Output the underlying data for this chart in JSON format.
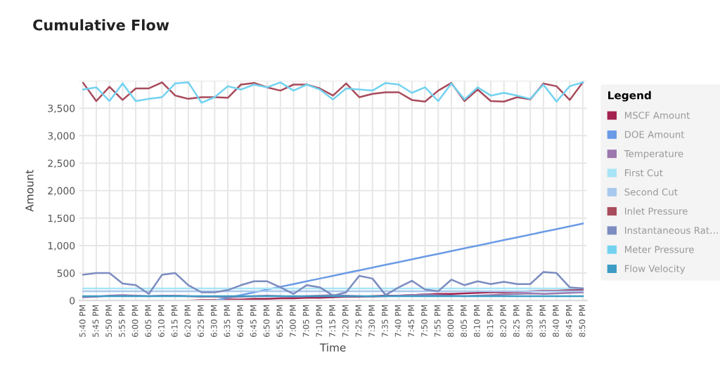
{
  "chart_data": {
    "type": "line",
    "title": "Cumulative Flow",
    "xlabel": "Time",
    "ylabel": "Amount",
    "legend_title": "Legend",
    "categories": [
      "5:40 PM",
      "5:45 PM",
      "5:50 PM",
      "5:55 PM",
      "6:00 PM",
      "6:05 PM",
      "6:10 PM",
      "6:15 PM",
      "6:20 PM",
      "6:25 PM",
      "6:30 PM",
      "6:35 PM",
      "6:40 PM",
      "6:45 PM",
      "6:50 PM",
      "6:55 PM",
      "7:00 PM",
      "7:05 PM",
      "7:10 PM",
      "7:15 PM",
      "7:20 PM",
      "7:25 PM",
      "7:30 PM",
      "7:35 PM",
      "7:40 PM",
      "7:45 PM",
      "7:50 PM",
      "7:55 PM",
      "8:00 PM",
      "8:05 PM",
      "8:10 PM",
      "8:15 PM",
      "8:20 PM",
      "8:25 PM",
      "8:30 PM",
      "8:35 PM",
      "8:40 PM",
      "8:45 PM",
      "8:50 PM"
    ],
    "series": [
      {
        "name": "MSCF Amount",
        "color": "#a3224f",
        "values": [
          null,
          null,
          null,
          null,
          null,
          null,
          null,
          null,
          0,
          10,
          10,
          20,
          20,
          30,
          30,
          40,
          40,
          50,
          50,
          60,
          70,
          70,
          80,
          90,
          90,
          100,
          110,
          120,
          120,
          130,
          140,
          150,
          150,
          160,
          170,
          180,
          180,
          190,
          200
        ]
      },
      {
        "name": "DOE Amount",
        "color": "#6b9be6",
        "values": [
          null,
          null,
          null,
          null,
          null,
          null,
          null,
          null,
          null,
          null,
          0,
          50,
          100,
          150,
          200,
          250,
          300,
          350,
          400,
          450,
          500,
          550,
          600,
          650,
          700,
          750,
          800,
          850,
          900,
          950,
          1000,
          1050,
          1100,
          1150,
          1200,
          1250,
          1300,
          1350,
          1400
        ]
      },
      {
        "name": "Temperature",
        "color": "#9b78ad",
        "values": [
          60,
          70,
          90,
          100,
          90,
          80,
          90,
          90,
          80,
          70,
          70,
          60,
          70,
          80,
          90,
          80,
          70,
          80,
          90,
          100,
          90,
          80,
          70,
          80,
          90,
          100,
          110,
          100,
          90,
          80,
          90,
          100,
          110,
          120,
          130,
          120,
          130,
          140,
          150
        ]
      },
      {
        "name": "First Cut",
        "color": "#a8e4f5",
        "values": [
          220,
          220,
          220,
          220,
          220,
          220,
          220,
          220,
          220,
          220,
          220,
          220,
          220,
          220,
          220,
          220,
          220,
          220,
          220,
          220,
          220,
          220,
          220,
          220,
          220,
          220,
          220,
          220,
          220,
          220,
          220,
          220,
          220,
          220,
          220,
          220,
          220,
          220,
          220
        ]
      },
      {
        "name": "Second Cut",
        "color": "#a8c8ee",
        "values": [
          170,
          170,
          170,
          170,
          170,
          170,
          170,
          170,
          170,
          170,
          170,
          170,
          170,
          170,
          170,
          170,
          170,
          170,
          170,
          170,
          170,
          170,
          170,
          170,
          170,
          170,
          170,
          170,
          170,
          170,
          170,
          170,
          170,
          170,
          170,
          170,
          170,
          170,
          170
        ]
      },
      {
        "name": "Inlet Pressure",
        "color": "#a84b5c",
        "values": [
          3960,
          3630,
          3890,
          3650,
          3860,
          3860,
          3970,
          3730,
          3670,
          3700,
          3700,
          3690,
          3930,
          3960,
          3880,
          3820,
          3930,
          3930,
          3860,
          3730,
          3950,
          3700,
          3760,
          3790,
          3790,
          3650,
          3620,
          3820,
          3960,
          3630,
          3840,
          3630,
          3620,
          3700,
          3660,
          3950,
          3900,
          3650,
          3970
        ]
      },
      {
        "name": "Instantaneous Rat…",
        "color": "#7c8cc0",
        "values": [
          470,
          500,
          500,
          310,
          280,
          120,
          470,
          500,
          280,
          150,
          150,
          190,
          280,
          350,
          350,
          240,
          120,
          280,
          240,
          90,
          150,
          450,
          400,
          100,
          240,
          360,
          200,
          170,
          380,
          280,
          350,
          300,
          340,
          300,
          300,
          520,
          500,
          240,
          220
        ]
      },
      {
        "name": "Meter Pressure",
        "color": "#72d2f0",
        "values": [
          3840,
          3880,
          3630,
          3950,
          3630,
          3670,
          3700,
          3950,
          3970,
          3600,
          3700,
          3900,
          3840,
          3930,
          3880,
          3970,
          3820,
          3930,
          3840,
          3660,
          3860,
          3840,
          3820,
          3960,
          3930,
          3780,
          3880,
          3630,
          3950,
          3660,
          3880,
          3730,
          3780,
          3730,
          3670,
          3930,
          3620,
          3900,
          3970
        ]
      },
      {
        "name": "Flow Velocity",
        "color": "#3d9cc4",
        "values": [
          80,
          80,
          80,
          80,
          80,
          80,
          80,
          80,
          80,
          80,
          80,
          80,
          80,
          80,
          80,
          80,
          80,
          80,
          80,
          80,
          80,
          80,
          80,
          80,
          80,
          80,
          80,
          80,
          80,
          80,
          80,
          80,
          80,
          80,
          80,
          80,
          80,
          80,
          80
        ]
      }
    ],
    "ylim": [
      0,
      4000
    ],
    "yticks": [
      0,
      500,
      {
        "value": 1000,
        "label": "1,000"
      },
      {
        "value": 1500,
        "label": "1,500"
      },
      {
        "value": 2000,
        "label": "2,000"
      },
      {
        "value": 2500,
        "label": "2,500"
      },
      {
        "value": 3000,
        "label": "3,000"
      },
      {
        "value": 3500,
        "label": "3,500"
      },
      {
        "value": 4000,
        "label": null
      }
    ],
    "grid": true,
    "legend": "right",
    "marker": "none",
    "line_style": "solid"
  }
}
